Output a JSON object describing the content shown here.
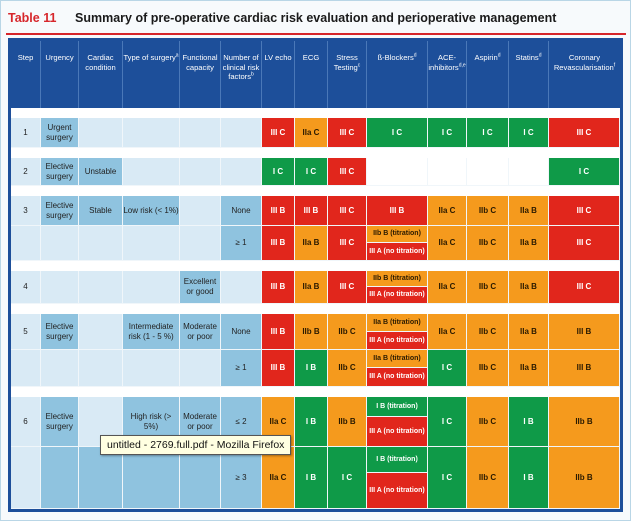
{
  "table": {
    "number": "Table 11",
    "caption": "Summary of pre-operative cardiac risk evaluation and perioperative management"
  },
  "headers": {
    "step": "Step",
    "urgency": "Urgency",
    "cardiac": "Cardiac condition",
    "type_of_surgery": "Type of surgery",
    "type_sup": "a",
    "functional": "Functional capacity",
    "clinical": "Number of clinical risk factors",
    "clinical_sup": "b",
    "lv": "LV echo",
    "ecg": "ECG",
    "stress": "Stress Testing",
    "stress_sup": "c",
    "beta": "ß-Blockers",
    "beta_sup": "d",
    "ace": "ACE-inhibitors",
    "ace_sup": "d,e",
    "aspirin": "Aspirin",
    "aspirin_sup": "d",
    "statins": "Statins",
    "statins_sup": "d",
    "coronary": "Coronary Revascularisation",
    "coronary_sup": "f"
  },
  "rows": [
    {
      "step": "1",
      "urgency": "Urgent surgery",
      "lv": "III C",
      "ecg": "IIa C",
      "stress": "III C",
      "beta": "I C",
      "ace": "I C",
      "aspirin": "I C",
      "statins": "I C",
      "coronary": "III C"
    },
    {
      "step": "2",
      "urgency": "Elective surgery",
      "cardiac": "Unstable",
      "lv": "I C",
      "ecg": "I C",
      "stress": "III C",
      "coronary": "I C"
    },
    {
      "step": "3",
      "urgency": "Elective surgery",
      "cardiac": "Stable",
      "surgery": "Low risk (< 1%)",
      "factors": "None",
      "lv": "III B",
      "ecg": "III B",
      "stress": "III C",
      "beta": "III B",
      "ace": "IIa C",
      "aspirin": "IIb C",
      "statins": "IIa B",
      "coronary": "III C"
    },
    {
      "factors": "≥ 1",
      "lv": "III B",
      "ecg": "IIa B",
      "stress": "III C",
      "beta_a": "IIb B (titration)",
      "beta_b": "III A (no titration)",
      "ace": "IIa C",
      "aspirin": "IIb C",
      "statins": "IIa B",
      "coronary": "III C"
    },
    {
      "step": "4",
      "functional": "Excellent or good",
      "lv": "III B",
      "ecg": "IIa B",
      "stress": "III C",
      "beta_a": "IIb B (titration)",
      "beta_b": "III A (no titration)",
      "ace": "IIa C",
      "aspirin": "IIb C",
      "statins": "IIa B",
      "coronary": "III C"
    },
    {
      "step": "5",
      "urgency": "Elective surgery",
      "surgery": "Intermediate risk (1 - 5 %)",
      "functional": "Moderate or poor",
      "factors": "None",
      "lv": "III B",
      "ecg": "IIb B",
      "stress": "IIb C",
      "beta_a": "IIa B (titration)",
      "beta_b": "III A (no titration)",
      "ace": "IIa C",
      "aspirin": "IIb C",
      "statins": "IIa B",
      "coronary": "III B"
    },
    {
      "factors": "≥ 1",
      "lv": "III B",
      "ecg": "I B",
      "stress": "IIb C",
      "beta_a": "IIa B (titration)",
      "beta_b": "III A (no titration)",
      "ace": "I C",
      "aspirin": "IIb C",
      "statins": "IIa B",
      "coronary": "III B"
    },
    {
      "step": "6",
      "urgency": "Elective surgery",
      "surgery": "High risk (> 5%)",
      "functional": "Moderate or poor",
      "factors": "≤ 2",
      "lv": "IIa C",
      "ecg": "I B",
      "stress": "IIb B",
      "beta_a": "I B (titration)",
      "beta_b": "III A (no titration)",
      "ace": "I C",
      "aspirin": "IIb C",
      "statins": "I B",
      "coronary": "IIb B"
    },
    {
      "factors": "≥ 3",
      "lv": "IIa C",
      "ecg": "I B",
      "stress": "I C",
      "beta_a": "I B (titration)",
      "beta_b": "III A (no titration)",
      "ace": "I C",
      "aspirin": "IIb C",
      "statins": "I B",
      "coronary": "IIb B"
    }
  ],
  "tooltip": "untitled - 2769.full.pdf - Mozilla Firefox",
  "colors": {
    "class_I": "#0f9a48",
    "class_IIa": "#f59a1d",
    "class_IIb": "#f59a1d",
    "class_III": "#e1261c",
    "header": "#1d4f9a",
    "title_red": "#d7262b"
  }
}
